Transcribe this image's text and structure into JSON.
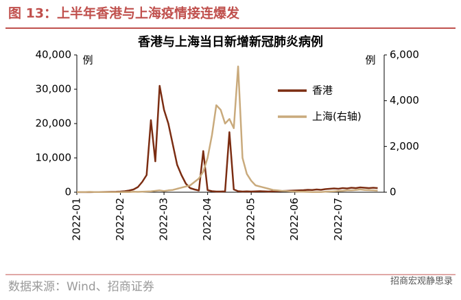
{
  "header": "图 13：上半年香港与上海疫情接连爆发",
  "source": "数据来源：Wind、招商证券",
  "watermark": "招商宏观静思录",
  "chart_data": {
    "type": "line",
    "title": "香港与上海当日新增新冠肺炎病例",
    "y_unit": "例",
    "y2_unit": "例",
    "categories": [
      "2022-01",
      null,
      null,
      null,
      null,
      null,
      null,
      null,
      null,
      null,
      "2022-02",
      null,
      null,
      null,
      null,
      null,
      null,
      null,
      null,
      null,
      "2022-03",
      null,
      null,
      null,
      null,
      null,
      null,
      null,
      null,
      null,
      "2022-04",
      null,
      null,
      null,
      null,
      null,
      null,
      null,
      null,
      null,
      "2022-05",
      null,
      null,
      null,
      null,
      null,
      null,
      null,
      null,
      null,
      "2022-06",
      null,
      null,
      null,
      null,
      null,
      null,
      null,
      null,
      null,
      "2022-07",
      null,
      null,
      null,
      null,
      null,
      null,
      null,
      null,
      null
    ],
    "series": [
      {
        "name": "香港",
        "color": "#7b2d12",
        "values": [
          20,
          20,
          30,
          20,
          40,
          60,
          80,
          100,
          120,
          150,
          200,
          300,
          500,
          800,
          1500,
          3000,
          5000,
          21000,
          9000,
          31000,
          24000,
          20000,
          14000,
          8000,
          5000,
          2500,
          1200,
          800,
          500,
          12000,
          600,
          300,
          200,
          200,
          250,
          17500,
          800,
          300,
          200,
          250,
          200,
          250,
          300,
          250,
          200,
          250,
          300,
          350,
          400,
          450,
          500,
          550,
          600,
          700,
          650,
          800,
          700,
          900,
          1000,
          1100,
          1000,
          1200,
          1100,
          1300,
          1200,
          1400,
          1300,
          1200,
          1300,
          1200
        ]
      },
      {
        "name": "上海(右轴)",
        "color": "#c9aa7c",
        "axis": "y2",
        "values": [
          10,
          5,
          10,
          15,
          10,
          5,
          5,
          10,
          10,
          5,
          5,
          10,
          10,
          20,
          15,
          20,
          30,
          40,
          60,
          80,
          50,
          80,
          100,
          150,
          200,
          250,
          300,
          450,
          600,
          900,
          1500,
          2500,
          3800,
          3600,
          3000,
          3200,
          2800,
          5500,
          1500,
          800,
          500,
          300,
          250,
          200,
          150,
          100,
          80,
          60,
          50,
          40,
          30,
          20,
          20,
          15,
          10,
          10,
          10,
          20,
          30,
          40,
          50,
          60,
          80,
          80,
          100,
          120,
          100,
          90,
          80,
          70
        ]
      }
    ],
    "ylim": [
      0,
      40000
    ],
    "yticks": [
      0,
      {
        "value": 10000,
        "label": "10,000"
      },
      {
        "value": 20000,
        "label": "20,000"
      },
      {
        "value": 30000,
        "label": "30,000"
      },
      {
        "value": 40000,
        "label": "40,000"
      }
    ],
    "y2lim": [
      0,
      6000
    ],
    "y2ticks": [
      0,
      {
        "value": 2000,
        "label": "2,000"
      },
      {
        "value": 4000,
        "label": "4,000"
      },
      {
        "value": 6000,
        "label": "6,000"
      }
    ],
    "legend": "upper right"
  }
}
